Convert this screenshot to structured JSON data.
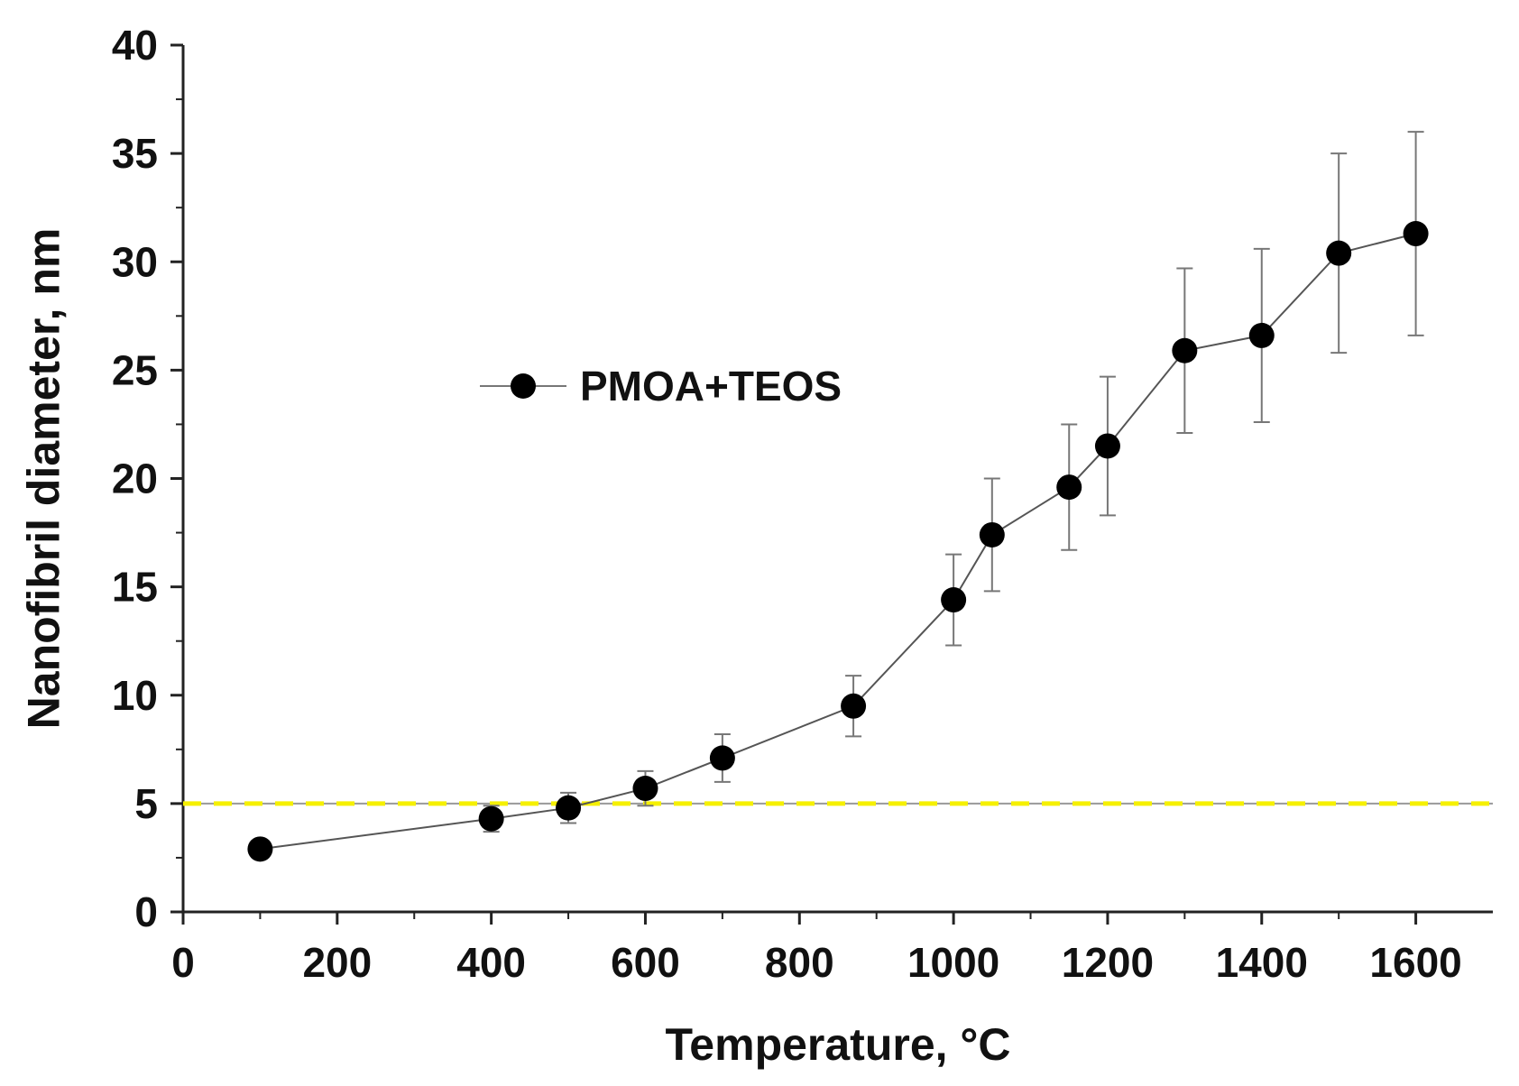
{
  "chart_data": {
    "type": "scatter",
    "title": "",
    "xlabel": "Temperature, °C",
    "ylabel": "Nanofibril diameter, nm",
    "xlim": [
      0,
      1700
    ],
    "ylim": [
      0,
      40
    ],
    "x_ticks": [
      0,
      200,
      400,
      600,
      800,
      1000,
      1200,
      1400,
      1600
    ],
    "x_tick_labels": [
      "0",
      "200",
      "400",
      "600",
      "800",
      "1000",
      "1200",
      "1400",
      "1600"
    ],
    "y_ticks": [
      0,
      5,
      10,
      15,
      20,
      25,
      30,
      35,
      40
    ],
    "y_tick_labels": [
      "0",
      "5",
      "10",
      "15",
      "20",
      "25",
      "30",
      "35",
      "40"
    ],
    "grid": false,
    "legend_position": "upper-left",
    "series": [
      {
        "name": "PMOA+TEOS",
        "marker": "filled-circle",
        "color": "#000000",
        "line_color": "#555555",
        "x": [
          100,
          400,
          500,
          600,
          700,
          870,
          1000,
          1050,
          1150,
          1200,
          1300,
          1400,
          1500,
          1600
        ],
        "y": [
          2.9,
          4.3,
          4.8,
          5.7,
          7.1,
          9.5,
          14.4,
          17.4,
          19.6,
          21.5,
          25.9,
          26.6,
          30.4,
          31.3
        ],
        "y_err": [
          0,
          0.6,
          0.7,
          0.8,
          1.1,
          1.4,
          2.1,
          2.6,
          2.9,
          3.2,
          3.8,
          4.0,
          4.6,
          4.7
        ]
      }
    ],
    "reference_line": {
      "y": 5,
      "color": "#f5f000",
      "style": "dashed"
    }
  }
}
